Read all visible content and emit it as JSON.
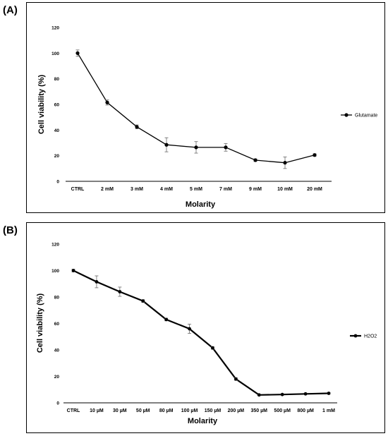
{
  "panels": [
    {
      "label": "(A)"
    },
    {
      "label": "(B)"
    }
  ],
  "chart_data": [
    {
      "type": "line",
      "xlabel": "Molarity",
      "ylabel": "Cell viability (%)",
      "ylim": [
        0,
        120
      ],
      "yticks": [
        0,
        20,
        40,
        60,
        80,
        100,
        120
      ],
      "grid": false,
      "legend_position": "right",
      "categories": [
        "CTRL",
        "2 mM",
        "3 mM",
        "4 mM",
        "5 mM",
        "7 mM",
        "9 mM",
        "10 mM",
        "20 mM"
      ],
      "series": [
        {
          "name": "Glutamate",
          "color": "#000000",
          "values": [
            100,
            61.5,
            42.5,
            28.5,
            26.5,
            26.5,
            16.5,
            14.5,
            20.5
          ],
          "errors": [
            2.5,
            2,
            1.5,
            5.5,
            4.5,
            3,
            1,
            4.5,
            1
          ]
        }
      ]
    },
    {
      "type": "line",
      "xlabel": "Molarity",
      "ylabel": "Cell viability (%)",
      "ylim": [
        0,
        120
      ],
      "yticks": [
        0,
        20,
        40,
        60,
        80,
        100,
        120
      ],
      "grid": false,
      "legend_position": "right",
      "categories": [
        "CTRL",
        "10 µM",
        "30 µM",
        "50 µM",
        "80 µM",
        "100 µM",
        "150 µM",
        "200 µM",
        "350 µM",
        "500 µM",
        "800 µM",
        "1 mM"
      ],
      "series": [
        {
          "name": "H2O2",
          "color": "#000000",
          "values": [
            100,
            91.5,
            84,
            77,
            63,
            56,
            41.5,
            18,
            6,
            6.3,
            6.8,
            7.2
          ],
          "errors": [
            1,
            4.5,
            3.5,
            1,
            1,
            3.5,
            1,
            1,
            0.5,
            0.5,
            0.5,
            0.5
          ]
        }
      ]
    }
  ]
}
